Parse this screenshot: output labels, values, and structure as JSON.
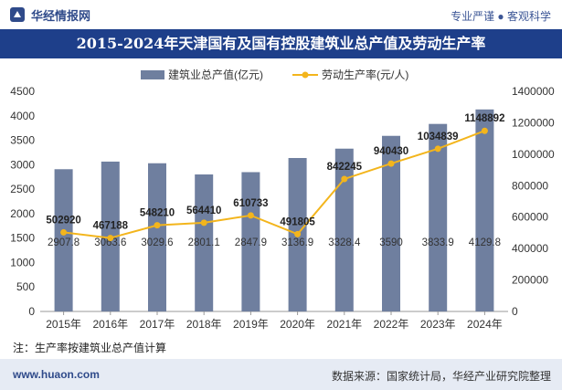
{
  "header": {
    "logo_text": "华经情报网",
    "tagline": "专业严谨 ● 客观科学"
  },
  "chart_data": {
    "type": "bar+line",
    "title": "2015-2024年天津国有及国有控股建筑业总产值及劳动生产率",
    "categories": [
      "2015年",
      "2016年",
      "2017年",
      "2018年",
      "2019年",
      "2020年",
      "2021年",
      "2022年",
      "2023年",
      "2024年"
    ],
    "series": [
      {
        "name": "建筑业总产值(亿元)",
        "type": "bar",
        "axis": "left",
        "color": "#6f7f9f",
        "values": [
          2907.8,
          3063.6,
          3029.6,
          2801.1,
          2847.9,
          3136.9,
          3328.4,
          3590,
          3833.9,
          4129.8
        ],
        "labels": [
          "2907.8",
          "3063.6",
          "3029.6",
          "2801.1",
          "2847.9",
          "3136.9",
          "3328.4",
          "3590",
          "3833.9",
          "4129.8"
        ]
      },
      {
        "name": "劳动生产率(元/人)",
        "type": "line",
        "axis": "right",
        "color": "#f3b51c",
        "values": [
          502920,
          467188,
          548210,
          564410,
          610733,
          491805,
          842245,
          940430,
          1034839,
          1148892
        ],
        "labels": [
          "502920",
          "467188",
          "548210",
          "564410",
          "610733",
          "491805",
          "842245",
          "940430",
          "1034839",
          "1148892"
        ]
      }
    ],
    "y_left": {
      "min": 0,
      "max": 4500,
      "ticks": [
        "0",
        "500",
        "1000",
        "1500",
        "2000",
        "2500",
        "3000",
        "3500",
        "4000",
        "4500"
      ]
    },
    "y_right": {
      "min": 0,
      "max": 1400000,
      "ticks": [
        "0",
        "200000",
        "400000",
        "600000",
        "800000",
        "1000000",
        "1200000",
        "1400000"
      ]
    },
    "legend_position": "top-center",
    "grid": false
  },
  "note": "注：生产率按建筑业总产值计算",
  "footer": {
    "site": "www.huaon.com",
    "source": "数据来源：国家统计局，华经产业研究院整理"
  }
}
